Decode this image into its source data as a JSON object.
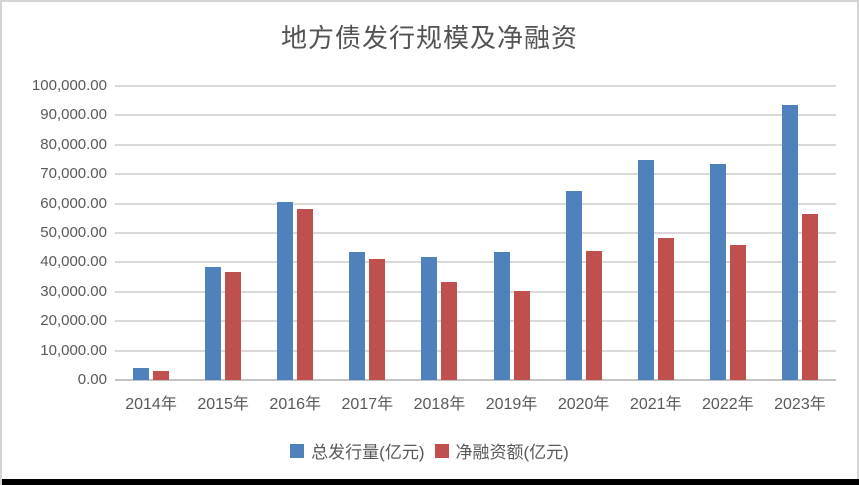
{
  "frame": {
    "background": "#ffffff",
    "border_color": "#d4d4d4",
    "bottom_bar_color": "#000000"
  },
  "chart_data": {
    "type": "bar",
    "title": "地方债发行规模及净融资",
    "categories": [
      "2014年",
      "2015年",
      "2016年",
      "2017年",
      "2018年",
      "2019年",
      "2020年",
      "2021年",
      "2022年",
      "2023年"
    ],
    "series": [
      {
        "name": "总发行量(亿元)",
        "color": "#4F81BD",
        "values": [
          4000,
          38500,
          60400,
          43600,
          41700,
          43600,
          64400,
          74900,
          73400,
          93400
        ]
      },
      {
        "name": "净融资额(亿元)",
        "color": "#C0504D",
        "values": [
          3100,
          36800,
          58000,
          41000,
          33400,
          30400,
          43900,
          48400,
          45900,
          56600
        ]
      }
    ],
    "xlabel": "",
    "ylabel": "",
    "ylim": [
      0,
      100000
    ],
    "y_tick_step": 10000,
    "y_tick_labels": [
      "0.00",
      "10,000.00",
      "20,000.00",
      "30,000.00",
      "40,000.00",
      "50,000.00",
      "60,000.00",
      "70,000.00",
      "80,000.00",
      "90,000.00",
      "100,000.00"
    ],
    "grid": true,
    "gridline_color": "#d9d9d9",
    "axis_line_color": "#c3c3c3",
    "text_color": "#595959",
    "legend_position": "bottom"
  }
}
